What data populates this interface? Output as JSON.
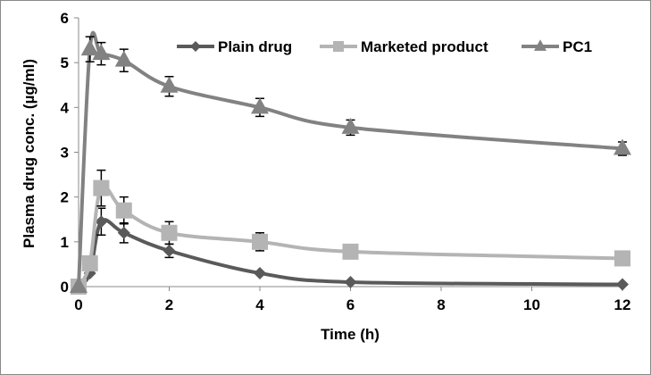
{
  "chart_data": {
    "type": "line",
    "title": "",
    "xlabel": "Time (h)",
    "ylabel": "Plasma drug conc. (µg/ml)",
    "xlim": [
      0,
      12
    ],
    "ylim": [
      0,
      6
    ],
    "xticks": [
      0,
      2,
      4,
      6,
      8,
      10,
      12
    ],
    "yticks": [
      0,
      1,
      2,
      3,
      4,
      5,
      6
    ],
    "grid": false,
    "legend": "top",
    "smoothed": true,
    "x": [
      0,
      0.25,
      0.5,
      1,
      2,
      4,
      6,
      12
    ],
    "series": [
      {
        "name": "Plain drug",
        "marker": "diamond",
        "color": "#5a5a5a",
        "values": [
          0,
          0.3,
          1.45,
          1.2,
          0.8,
          0.3,
          0.1,
          0.05
        ],
        "errors": [
          0,
          0,
          0.3,
          0.22,
          0.15,
          0,
          0,
          0
        ]
      },
      {
        "name": "Marketed product",
        "marker": "square",
        "color": "#b4b4b4",
        "values": [
          0,
          0.52,
          2.2,
          1.7,
          1.2,
          1.0,
          0.78,
          0.63
        ],
        "errors": [
          0,
          0,
          0.4,
          0.3,
          0.25,
          0.2,
          0,
          0
        ]
      },
      {
        "name": "PC1",
        "marker": "triangle",
        "color": "#828282",
        "values": [
          0,
          5.3,
          5.2,
          5.05,
          4.47,
          4.0,
          3.55,
          3.08
        ],
        "errors": [
          0,
          0.28,
          0.25,
          0.25,
          0.22,
          0.2,
          0.17,
          0.15
        ]
      }
    ]
  }
}
